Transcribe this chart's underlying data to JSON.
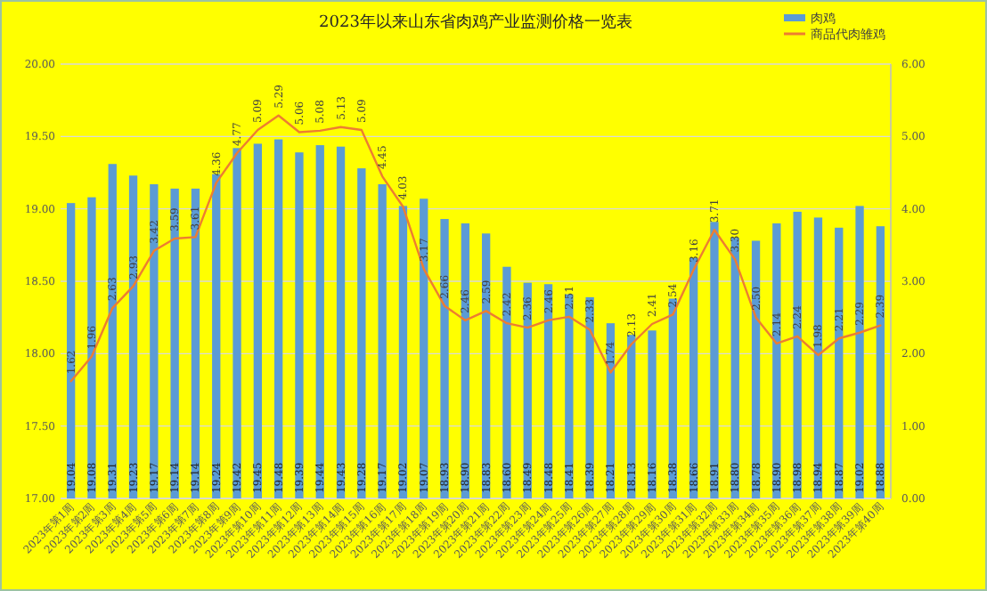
{
  "chart_data": {
    "type": "bar",
    "title": "2023年以来山东省肉鸡产业监测价格一览表",
    "categories": [
      "2023年第1周",
      "2023年第2周",
      "2023年第3周",
      "2023年第4周",
      "2023年第5周",
      "2023年第6周",
      "2023年第7周",
      "2023年第8周",
      "2023年第9周",
      "2023年第10周",
      "2023年第11周",
      "2023年第12周",
      "2023年第13周",
      "2023年第14周",
      "2023年第15周",
      "2023年第16周",
      "2023年第17周",
      "2023年第18周",
      "2023年第19周",
      "2023年第20周",
      "2023年第21周",
      "2023年第22周",
      "2023年第23周",
      "2023年第24周",
      "2023年第25周",
      "2023年第26周",
      "2023年第27周",
      "2023年第28周",
      "2023年第29周",
      "2023年第30周",
      "2023年第31周",
      "2023年第32周",
      "2023年第33周",
      "2023年第34周",
      "2023年第35周",
      "2023年第36周",
      "2023年第37周",
      "2023年第38周",
      "2023年第39周",
      "2023年第40周"
    ],
    "series": [
      {
        "name": "肉鸡",
        "color": "#5b9bd5",
        "value_labels": [
          "19.04",
          "19.08",
          "19.31",
          "19.23",
          "19.17",
          "19.14",
          "19.14",
          "19.24",
          "19.42",
          "19.45",
          "19.48",
          "19.39",
          "19.44",
          "19.43",
          "19.28",
          "19.17",
          "19.02",
          "19.07",
          "18.93",
          "18.90",
          "18.83",
          "18.60",
          "18.49",
          "18.48",
          "18.41",
          "18.39",
          "18.21",
          "18.13",
          "18.16",
          "18.38",
          "18.66",
          "18.91",
          "18.80",
          "18.78",
          "18.90",
          "18.98",
          "18.94",
          "18.87",
          "19.02",
          "18.88"
        ],
        "values": [
          19.04,
          19.08,
          19.31,
          19.23,
          19.17,
          19.14,
          19.14,
          19.24,
          19.42,
          19.45,
          19.48,
          19.39,
          19.44,
          19.43,
          19.28,
          19.17,
          19.02,
          19.07,
          18.93,
          18.9,
          18.83,
          18.6,
          18.49,
          18.48,
          18.41,
          18.39,
          18.21,
          18.13,
          18.16,
          18.38,
          18.66,
          18.91,
          18.8,
          18.78,
          18.9,
          18.98,
          18.94,
          18.87,
          19.02,
          18.88
        ]
      },
      {
        "name": "商品代肉雏鸡",
        "type": "line",
        "axis": "y2",
        "color": "#ed7d31",
        "value_labels": [
          "1.62",
          "1.96",
          "2.63",
          "2.93",
          "3.42",
          "3.59",
          "3.61",
          "4.36",
          "4.77",
          "5.09",
          "5.29",
          "5.06",
          "5.08",
          "5.13",
          "5.09",
          "4.45",
          "4.03",
          "3.17",
          "2.66",
          "2.46",
          "2.59",
          "2.42",
          "2.36",
          "2.46",
          "2.51",
          "2.33",
          "1.74",
          "2.13",
          "2.41",
          "2.54",
          "3.16",
          "3.71",
          "3.30",
          "2.50",
          "2.14",
          "2.24",
          "1.98",
          "2.21",
          "2.29",
          "2.39"
        ],
        "values": [
          1.62,
          1.96,
          2.63,
          2.93,
          3.42,
          3.59,
          3.61,
          4.36,
          4.77,
          5.09,
          5.29,
          5.06,
          5.08,
          5.13,
          5.09,
          4.45,
          4.03,
          3.17,
          2.66,
          2.46,
          2.59,
          2.42,
          2.36,
          2.46,
          2.51,
          2.33,
          1.74,
          2.13,
          2.41,
          2.54,
          3.16,
          3.71,
          3.3,
          2.5,
          2.14,
          2.24,
          1.98,
          2.21,
          2.29,
          2.39
        ]
      }
    ],
    "ylim": [
      17,
      20
    ],
    "yticks": [
      {
        "value": 17,
        "label": "17.00"
      },
      {
        "value": 17.5,
        "label": "17.50"
      },
      {
        "value": 18,
        "label": "18.00"
      },
      {
        "value": 18.5,
        "label": "18.50"
      },
      {
        "value": 19,
        "label": "19.00"
      },
      {
        "value": 19.5,
        "label": "19.50"
      },
      {
        "value": 20,
        "label": "20.00"
      }
    ],
    "y2lim": [
      0,
      6
    ],
    "y2ticks": [
      {
        "value": 0,
        "label": "0.00"
      },
      {
        "value": 1,
        "label": "1.00"
      },
      {
        "value": 2,
        "label": "2.00"
      },
      {
        "value": 3,
        "label": "3.00"
      },
      {
        "value": 4,
        "label": "4.00"
      },
      {
        "value": 5,
        "label": "5.00"
      },
      {
        "value": 6,
        "label": "6.00"
      }
    ],
    "grid": "y",
    "legend": "top right"
  }
}
